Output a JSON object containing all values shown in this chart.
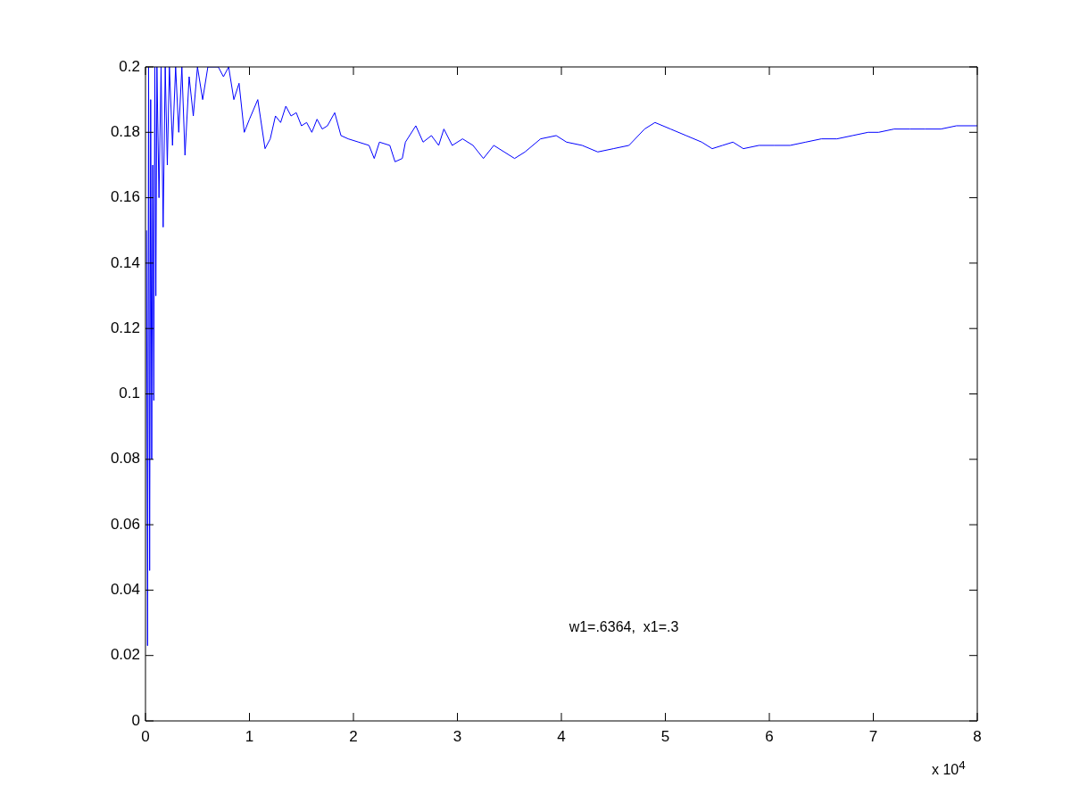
{
  "chart_data": {
    "type": "line",
    "xlabel": "x 10$^{4}$",
    "annotations": [
      "w1=.6364,  x1=.3"
    ],
    "x": [
      0.01,
      0.02,
      0.03,
      0.04,
      0.05,
      0.06,
      0.07,
      0.08,
      0.09,
      0.1,
      0.11,
      0.13,
      0.15,
      0.17,
      0.19,
      0.21,
      0.23,
      0.26,
      0.29,
      0.32,
      0.35,
      0.38,
      0.42,
      0.46,
      0.5,
      0.55,
      0.6,
      0.7,
      0.75,
      0.8,
      0.85,
      0.9,
      0.95,
      1,
      1.08,
      1.15,
      1.2,
      1.25,
      1.3,
      1.35,
      1.4,
      1.45,
      1.5,
      1.55,
      1.6,
      1.65,
      1.7,
      1.75,
      1.82,
      1.88,
      1.95,
      2.05,
      2.15,
      2.2,
      2.25,
      2.35,
      2.4,
      2.47,
      2.5,
      2.6,
      2.67,
      2.75,
      2.82,
      2.87,
      2.95,
      3.05,
      3.15,
      3.25,
      3.35,
      3.45,
      3.55,
      3.65,
      3.8,
      3.95,
      4.05,
      4.2,
      4.35,
      4.5,
      4.65,
      4.8,
      4.9,
      5.05,
      5.2,
      5.35,
      5.45,
      5.55,
      5.65,
      5.75,
      5.9,
      6.05,
      6.2,
      6.35,
      6.5,
      6.65,
      6.8,
      6.95,
      7.05,
      7.2,
      7.35,
      7.5,
      7.65,
      7.8,
      8
    ],
    "series": [
      {
        "color": "#0000ff",
        "values": [
          0.15,
          0.023,
          0.2,
          0.046,
          0.19,
          0.08,
          0.17,
          0.098,
          0.2,
          0.13,
          0.2,
          0.16,
          0.2,
          0.151,
          0.2,
          0.17,
          0.2,
          0.176,
          0.2,
          0.18,
          0.2,
          0.173,
          0.197,
          0.185,
          0.2,
          0.19,
          0.2,
          0.2,
          0.197,
          0.2,
          0.19,
          0.195,
          0.18,
          0.184,
          0.19,
          0.175,
          0.178,
          0.185,
          0.183,
          0.188,
          0.185,
          0.186,
          0.182,
          0.183,
          0.18,
          0.184,
          0.181,
          0.182,
          0.186,
          0.179,
          0.178,
          0.177,
          0.176,
          0.172,
          0.177,
          0.176,
          0.171,
          0.172,
          0.177,
          0.182,
          0.177,
          0.179,
          0.176,
          0.181,
          0.176,
          0.178,
          0.176,
          0.172,
          0.176,
          0.174,
          0.172,
          0.174,
          0.178,
          0.179,
          0.177,
          0.176,
          0.174,
          0.175,
          0.176,
          0.181,
          0.183,
          0.181,
          0.179,
          0.177,
          0.175,
          0.176,
          0.177,
          0.175,
          0.176,
          0.176,
          0.176,
          0.177,
          0.178,
          0.178,
          0.179,
          0.18,
          0.18,
          0.181,
          0.181,
          0.181,
          0.181,
          0.182,
          0.182
        ]
      }
    ],
    "xlim": [
      0,
      8
    ],
    "xticks": [
      0,
      1,
      2,
      3,
      4,
      5,
      6,
      7,
      8
    ],
    "ylim": [
      0,
      0.2
    ],
    "yticks": [
      0,
      0.02,
      0.04,
      0.06,
      0.08,
      0.1,
      0.12,
      0.14,
      0.16,
      0.18,
      0.2
    ],
    "grid": false,
    "legend": false,
    "marker": "none",
    "line_style": "solid"
  }
}
